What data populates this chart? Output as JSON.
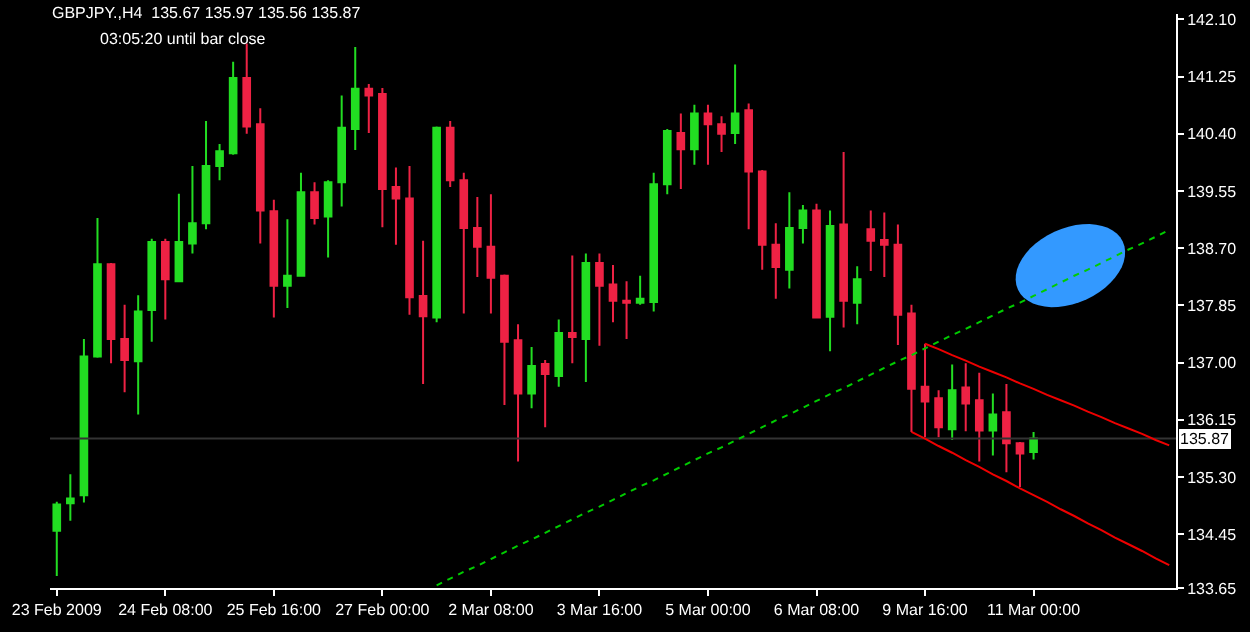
{
  "chart_data": {
    "type": "candlestick",
    "title": "GBPJPY.,H4  135.67 135.97 135.56 135.87",
    "subtitle": "03:05:20 until bar close",
    "categories": [
      "23 Feb 2009",
      null,
      null,
      null,
      null,
      null,
      null,
      null,
      "24 Feb 08:00",
      null,
      null,
      null,
      null,
      null,
      null,
      null,
      "25 Feb 16:00",
      null,
      null,
      null,
      null,
      null,
      null,
      null,
      "27 Feb 00:00",
      null,
      null,
      null,
      null,
      null,
      null,
      null,
      "2 Mar 08:00",
      null,
      null,
      null,
      null,
      null,
      null,
      null,
      "3 Mar 16:00",
      null,
      null,
      null,
      null,
      null,
      null,
      null,
      "5 Mar 00:00",
      null,
      null,
      null,
      null,
      null,
      null,
      null,
      "6 Mar 08:00",
      null,
      null,
      null,
      null,
      null,
      null,
      null,
      "9 Mar 16:00",
      null,
      null,
      null,
      null,
      null,
      null,
      null,
      "11 Mar 00:00",
      null,
      null,
      null,
      null,
      null,
      null,
      null,
      null,
      null,
      null
    ],
    "ohlc": [
      [
        134.5,
        134.93,
        133.83,
        134.89
      ],
      [
        134.91,
        135.34,
        134.65,
        134.98
      ],
      [
        135.03,
        137.35,
        134.92,
        137.09
      ],
      [
        137.09,
        139.15,
        137.07,
        138.46
      ],
      [
        138.46,
        138.48,
        136.99,
        137.35
      ],
      [
        137.35,
        137.86,
        136.56,
        137.04
      ],
      [
        137.02,
        138.0,
        136.23,
        137.76
      ],
      [
        137.78,
        138.84,
        137.31,
        138.79
      ],
      [
        138.79,
        138.84,
        137.64,
        138.24
      ],
      [
        138.21,
        139.51,
        138.21,
        138.79
      ],
      [
        138.77,
        139.92,
        138.62,
        139.07
      ],
      [
        139.07,
        140.59,
        138.98,
        139.92
      ],
      [
        139.92,
        140.25,
        139.71,
        140.14
      ],
      [
        140.11,
        141.47,
        140.09,
        141.23
      ],
      [
        141.23,
        141.74,
        140.4,
        140.51
      ],
      [
        140.54,
        140.78,
        138.77,
        139.26
      ],
      [
        139.25,
        139.42,
        137.67,
        138.14
      ],
      [
        138.14,
        139.13,
        137.81,
        138.29
      ],
      [
        138.29,
        139.82,
        138.29,
        139.53
      ],
      [
        139.53,
        139.68,
        139.05,
        139.15
      ],
      [
        139.17,
        139.71,
        138.56,
        139.68
      ],
      [
        139.68,
        140.97,
        139.32,
        140.49
      ],
      [
        140.47,
        141.69,
        140.16,
        141.07
      ],
      [
        141.07,
        141.14,
        140.41,
        140.97
      ],
      [
        140.99,
        141.08,
        139.01,
        139.58
      ],
      [
        139.61,
        139.9,
        138.75,
        139.44
      ],
      [
        139.44,
        139.92,
        137.71,
        137.97
      ],
      [
        137.99,
        138.81,
        136.68,
        137.69
      ],
      [
        137.67,
        140.51,
        137.6,
        140.49
      ],
      [
        140.49,
        140.59,
        139.61,
        139.71
      ],
      [
        139.71,
        139.82,
        137.73,
        139.0
      ],
      [
        139.0,
        139.46,
        138.27,
        138.72
      ],
      [
        138.72,
        139.5,
        137.73,
        138.26
      ],
      [
        138.29,
        138.31,
        136.37,
        137.31
      ],
      [
        137.33,
        137.57,
        135.53,
        136.54
      ],
      [
        136.54,
        137.23,
        136.32,
        136.95
      ],
      [
        136.98,
        137.04,
        136.04,
        136.83
      ],
      [
        136.8,
        137.64,
        136.64,
        137.44
      ],
      [
        137.44,
        138.59,
        136.99,
        137.38
      ],
      [
        137.35,
        138.62,
        136.71,
        138.48
      ],
      [
        138.48,
        138.62,
        137.25,
        138.14
      ],
      [
        138.16,
        138.45,
        137.6,
        137.92
      ],
      [
        137.92,
        138.21,
        137.35,
        137.89
      ],
      [
        137.89,
        138.29,
        137.86,
        137.95
      ],
      [
        137.9,
        139.82,
        137.76,
        139.65
      ],
      [
        139.65,
        140.47,
        139.5,
        140.44
      ],
      [
        140.41,
        140.7,
        139.58,
        140.17
      ],
      [
        140.17,
        140.83,
        139.94,
        140.7
      ],
      [
        140.7,
        140.83,
        139.94,
        140.54
      ],
      [
        140.54,
        140.66,
        140.13,
        140.4
      ],
      [
        140.41,
        141.43,
        140.25,
        140.7
      ],
      [
        140.75,
        140.85,
        138.98,
        139.84
      ],
      [
        139.84,
        139.86,
        138.38,
        138.75
      ],
      [
        138.75,
        139.07,
        137.95,
        138.42
      ],
      [
        138.38,
        139.53,
        138.1,
        139.0
      ],
      [
        139.0,
        139.34,
        138.77,
        139.26
      ],
      [
        139.26,
        139.36,
        137.66,
        137.67
      ],
      [
        137.68,
        139.26,
        137.17,
        139.03
      ],
      [
        139.05,
        140.13,
        137.52,
        137.92
      ],
      [
        137.89,
        138.43,
        137.57,
        138.24
      ],
      [
        138.98,
        139.26,
        138.36,
        138.81
      ],
      [
        138.82,
        139.23,
        138.27,
        138.75
      ],
      [
        138.75,
        139.05,
        137.26,
        137.71
      ],
      [
        137.73,
        137.86,
        135.97,
        136.61
      ],
      [
        136.64,
        137.28,
        135.89,
        136.42
      ],
      [
        136.47,
        136.59,
        135.89,
        136.04
      ],
      [
        136.01,
        136.97,
        135.85,
        136.59
      ],
      [
        136.63,
        136.99,
        135.98,
        136.39
      ],
      [
        136.44,
        136.85,
        135.53,
        135.99
      ],
      [
        135.99,
        136.54,
        135.62,
        136.23
      ],
      [
        136.26,
        136.68,
        135.37,
        135.8
      ],
      [
        135.8,
        135.82,
        135.15,
        135.65
      ],
      [
        135.67,
        135.97,
        135.56,
        135.87
      ],
      null,
      null,
      null,
      null,
      null,
      null,
      null,
      null,
      null,
      null
    ],
    "colors": [
      "#22dd22",
      "#22dd22",
      "#22dd22",
      "#22dd22",
      "#ee2244",
      "#ee2244",
      "#22dd22",
      "#22dd22",
      "#ee2244",
      "#22dd22",
      "#22dd22",
      "#22dd22",
      "#22dd22",
      "#22dd22",
      "#ee2244",
      "#ee2244",
      "#ee2244",
      "#22dd22",
      "#22dd22",
      "#ee2244",
      "#22dd22",
      "#22dd22",
      "#22dd22",
      "#ee2244",
      "#ee2244",
      "#ee2244",
      "#ee2244",
      "#ee2244",
      "#22dd22",
      "#ee2244",
      "#ee2244",
      "#ee2244",
      "#ee2244",
      "#ee2244",
      "#ee2244",
      "#22dd22",
      "#ee2244",
      "#22dd22",
      "#ee2244",
      "#22dd22",
      "#ee2244",
      "#ee2244",
      "#ee2244",
      "#22dd22",
      "#22dd22",
      "#22dd22",
      "#ee2244",
      "#22dd22",
      "#ee2244",
      "#ee2244",
      "#22dd22",
      "#ee2244",
      "#ee2244",
      "#ee2244",
      "#22dd22",
      "#22dd22",
      "#ee2244",
      "#22dd22",
      "#ee2244",
      "#22dd22",
      "#ee2244",
      "#ee2244",
      "#ee2244",
      "#ee2244",
      "#ee2244",
      "#ee2244",
      "#22dd22",
      "#ee2244",
      "#ee2244",
      "#22dd22",
      "#ee2244",
      "#ee2244",
      "#22dd22",
      null,
      null,
      null,
      null,
      null,
      null,
      null,
      null,
      null,
      null
    ],
    "series": [
      {
        "type": "line",
        "color": "#00cc00",
        "line_style": "dashed",
        "values": [
          null,
          null,
          null,
          null,
          null,
          null,
          null,
          null,
          null,
          null,
          null,
          null,
          null,
          null,
          null,
          null,
          null,
          null,
          null,
          null,
          null,
          null,
          null,
          null,
          null,
          null,
          null,
          null,
          133.69,
          133.79,
          133.89,
          133.98,
          134.08,
          134.18,
          134.28,
          134.37,
          134.47,
          134.57,
          134.67,
          134.77,
          134.86,
          134.96,
          135.06,
          135.16,
          135.25,
          135.35,
          135.45,
          135.55,
          135.65,
          135.74,
          135.84,
          135.94,
          136.04,
          136.14,
          136.23,
          136.33,
          136.43,
          136.53,
          136.62,
          136.72,
          136.82,
          136.92,
          137.02,
          137.11,
          137.21,
          137.31,
          137.41,
          137.5,
          137.6,
          137.7,
          137.8,
          137.89,
          137.99,
          138.09,
          138.19,
          138.29,
          138.38,
          138.48,
          138.58,
          138.68,
          138.77,
          138.87,
          138.97
        ]
      },
      {
        "type": "line",
        "color": "#ee0000",
        "line_style": "solid",
        "values": [
          null,
          null,
          null,
          null,
          null,
          null,
          null,
          null,
          null,
          null,
          null,
          null,
          null,
          null,
          null,
          null,
          null,
          null,
          null,
          null,
          null,
          null,
          null,
          null,
          null,
          null,
          null,
          null,
          null,
          null,
          null,
          null,
          null,
          null,
          null,
          null,
          null,
          null,
          null,
          null,
          null,
          null,
          null,
          null,
          null,
          null,
          null,
          null,
          null,
          null,
          null,
          null,
          null,
          null,
          null,
          null,
          null,
          null,
          null,
          null,
          null,
          null,
          null,
          null,
          137.28,
          137.2,
          137.11,
          137.03,
          136.94,
          136.86,
          136.78,
          136.69,
          136.61,
          136.52,
          136.44,
          136.36,
          136.27,
          136.19,
          136.1,
          136.02,
          135.94,
          135.85,
          135.77
        ]
      },
      {
        "type": "line",
        "color": "#ee0000",
        "line_style": "solid",
        "values": [
          null,
          null,
          null,
          null,
          null,
          null,
          null,
          null,
          null,
          null,
          null,
          null,
          null,
          null,
          null,
          null,
          null,
          null,
          null,
          null,
          null,
          null,
          null,
          null,
          null,
          null,
          null,
          null,
          null,
          null,
          null,
          null,
          null,
          null,
          null,
          null,
          null,
          null,
          null,
          null,
          null,
          null,
          null,
          null,
          null,
          null,
          null,
          null,
          null,
          null,
          null,
          null,
          null,
          null,
          null,
          null,
          null,
          null,
          null,
          null,
          null,
          null,
          null,
          135.97,
          135.87,
          135.76,
          135.66,
          135.55,
          135.45,
          135.34,
          135.24,
          135.13,
          135.03,
          134.93,
          134.82,
          134.72,
          134.61,
          134.51,
          134.4,
          134.3,
          134.2,
          134.09,
          133.99
        ]
      }
    ],
    "ref_lines": [
      {
        "axis": "y",
        "value": 135.87,
        "label": "135.87",
        "color": "#333333"
      }
    ],
    "ylim": [
      133.65,
      142.18
    ],
    "yticks": [
      {
        "value": 142.1,
        "label": "142.10"
      },
      141.25,
      {
        "value": 140.4,
        "label": "140.40"
      },
      139.55,
      {
        "value": 138.7,
        "label": "138.70"
      },
      137.85,
      {
        "value": 137.0,
        "label": "137.00"
      },
      136.15,
      {
        "value": 135.3,
        "label": "135.30"
      },
      134.45,
      133.65
    ],
    "grid": false
  }
}
